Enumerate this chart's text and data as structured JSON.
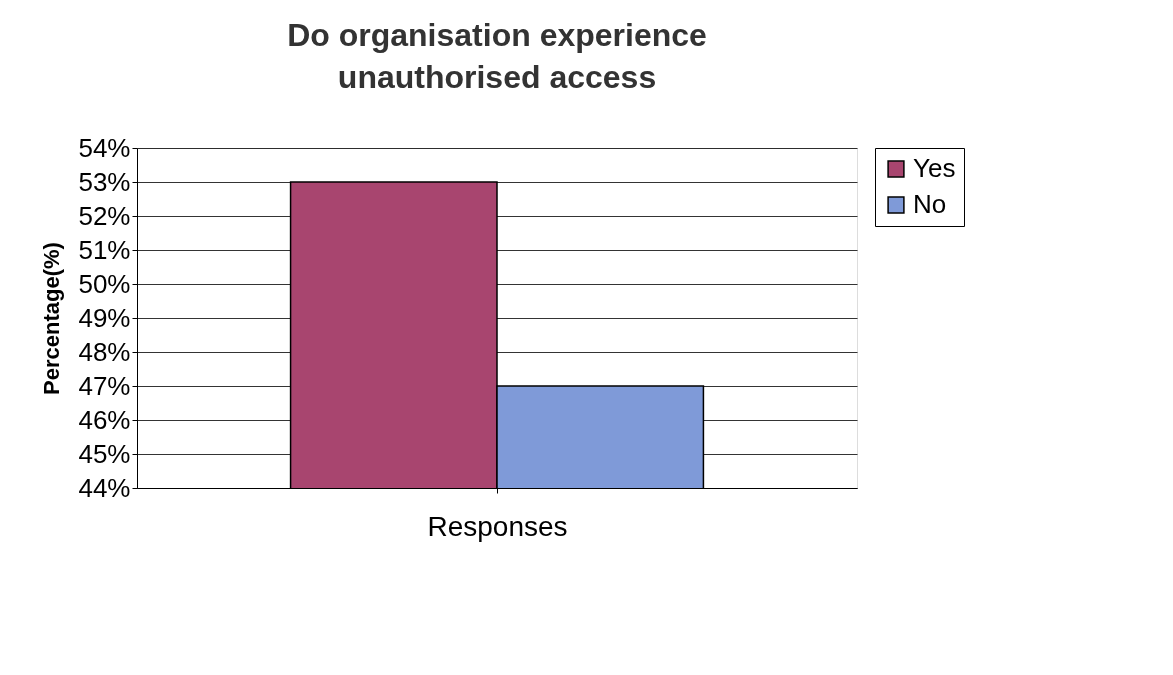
{
  "chart_data": {
    "type": "bar",
    "title": "Do organisation experience unauthorised access",
    "xlabel": "Responses",
    "ylabel": "Percentage(%)",
    "categories": [
      null
    ],
    "series": [
      {
        "name": "Yes",
        "color": "#a8456f",
        "values": [
          53
        ]
      },
      {
        "name": "No",
        "color": "#7f9ad8",
        "values": [
          47
        ]
      }
    ],
    "ylim": [
      44,
      54
    ],
    "yticks": [
      {
        "value": 44,
        "label": "44%"
      },
      {
        "value": 45,
        "label": "45%"
      },
      {
        "value": 46,
        "label": "46%"
      },
      {
        "value": 47,
        "label": "47%"
      },
      {
        "value": 48,
        "label": "48%"
      },
      {
        "value": 49,
        "label": "49%"
      },
      {
        "value": 50,
        "label": "50%"
      },
      {
        "value": 51,
        "label": "51%"
      },
      {
        "value": 52,
        "label": "52%"
      },
      {
        "value": 53,
        "label": "53%"
      },
      {
        "value": 54,
        "label": "54%"
      }
    ],
    "grid": "y",
    "legend": "right",
    "tick_labels": "y"
  }
}
